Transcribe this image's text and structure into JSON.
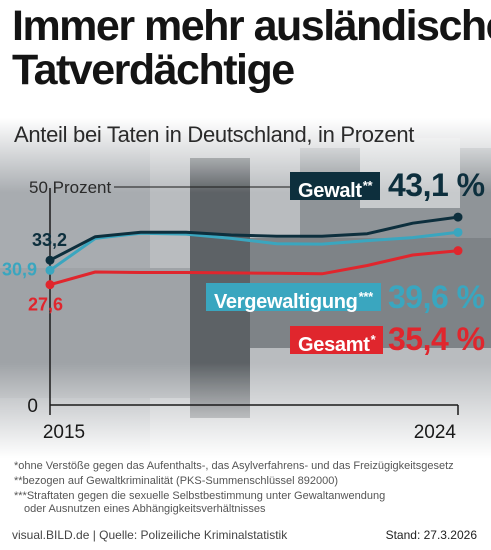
{
  "title_line1": "Immer mehr ausländische",
  "title_line2": "Tatverdächtige",
  "subtitle": "Anteil bei Taten in Deutschland, in Prozent",
  "colors": {
    "gewalt": "#0d2f3d",
    "vergewaltigung": "#3aa6bf",
    "gesamt": "#e0262d"
  },
  "chart_data": {
    "type": "line",
    "x": [
      2015,
      2016,
      2017,
      2018,
      2019,
      2020,
      2021,
      2022,
      2023,
      2024
    ],
    "x_tick_labels": [
      "2015",
      "2024"
    ],
    "y_tick_labels": [
      "0",
      "50 Prozent"
    ],
    "ylim": [
      0,
      50
    ],
    "grid": false,
    "series": [
      {
        "name": "Gewalt",
        "marker": "**",
        "start_label": "33,2",
        "end_label": "43,1 %",
        "values": [
          33.2,
          38.6,
          39.6,
          39.6,
          39.0,
          38.7,
          38.7,
          39.3,
          41.7,
          43.1
        ]
      },
      {
        "name": "Vergewaltigung",
        "marker": "***",
        "start_label": "30,9",
        "end_label": "39,6 %",
        "values": [
          30.9,
          38.2,
          39.4,
          39.2,
          38.2,
          37.0,
          36.9,
          37.7,
          38.4,
          39.6
        ]
      },
      {
        "name": "Gesamt",
        "marker": "*",
        "start_label": "27,6",
        "end_label": "35,4 %",
        "values": [
          27.6,
          30.5,
          30.4,
          30.4,
          30.3,
          30.2,
          30.1,
          32.0,
          34.4,
          35.4
        ]
      }
    ]
  },
  "footnotes": [
    "*ohne Verstöße gegen das Aufenthalts-, das Asylverfahrens- und das Freizügigkeitsgesetz",
    "**bezogen auf Gewaltkriminalität (PKS-Summenschlüssel 892000)",
    "***Straftaten gegen die sexuelle Selbstbestimmung unter Gewaltanwendung",
    "oder Ausnutzen eines Abhängigkeitsverhältnisses"
  ],
  "source": "visual.BILD.de | Quelle: Polizeiliche Kriminalstatistik",
  "stand": "Stand: 27.3.2026"
}
